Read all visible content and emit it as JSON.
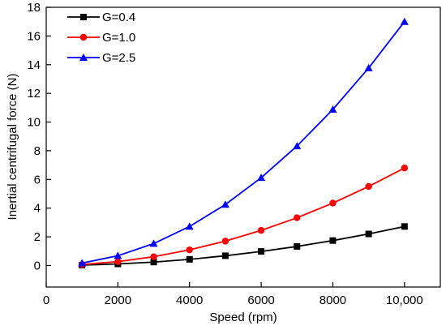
{
  "chart_data": {
    "type": "line",
    "xlabel": "Speed (rpm)",
    "ylabel": "Inertial centrifugal force (N)",
    "xlim": [
      0,
      11000
    ],
    "ylim": [
      -1.5,
      18
    ],
    "x_ticks": [
      0,
      2000,
      4000,
      6000,
      8000,
      10000
    ],
    "x_tick_labels": [
      "0",
      "2000",
      "4000",
      "6000",
      "8000",
      "10,000"
    ],
    "y_ticks": [
      0,
      2,
      4,
      6,
      8,
      10,
      12,
      14,
      16,
      18
    ],
    "y_tick_labels": [
      "0",
      "2",
      "4",
      "6",
      "8",
      "10",
      "12",
      "14",
      "16",
      "18"
    ],
    "grid": false,
    "legend_position": "top-left",
    "x": [
      1000,
      2000,
      3000,
      4000,
      5000,
      6000,
      7000,
      8000,
      9000,
      10000
    ],
    "series": [
      {
        "name": "G=0.4",
        "color": "#000000",
        "marker": "square",
        "values": [
          0.03,
          0.11,
          0.24,
          0.43,
          0.68,
          0.98,
          1.33,
          1.74,
          2.2,
          2.72
        ]
      },
      {
        "name": "G=1.0",
        "color": "#ff0000",
        "marker": "circle",
        "values": [
          0.07,
          0.27,
          0.61,
          1.09,
          1.7,
          2.45,
          3.33,
          4.35,
          5.51,
          6.8
        ]
      },
      {
        "name": "G=2.5",
        "color": "#0000ff",
        "marker": "triangle",
        "values": [
          0.17,
          0.68,
          1.53,
          2.72,
          4.25,
          6.12,
          8.33,
          10.88,
          13.77,
          17.0
        ]
      }
    ]
  }
}
